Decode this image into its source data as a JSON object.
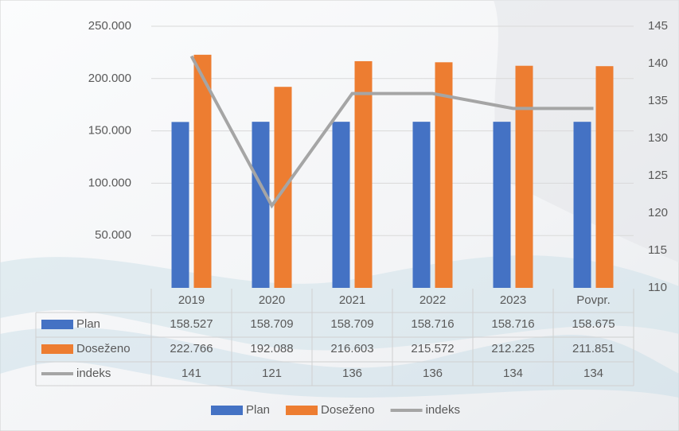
{
  "chart_data": {
    "type": "bar",
    "categories": [
      "2019",
      "2020",
      "2021",
      "2022",
      "2023",
      "Povpr."
    ],
    "series": [
      {
        "name": "Plan",
        "color": "#4472c4",
        "values": [
          158527,
          158709,
          158709,
          158716,
          158716,
          158675
        ],
        "value_labels": [
          "158.527",
          "158.709",
          "158.709",
          "158.716",
          "158.716",
          "158.675"
        ]
      },
      {
        "name": "Doseženo",
        "color": "#ed7d31",
        "values": [
          222766,
          192088,
          216603,
          215572,
          212225,
          211851
        ],
        "value_labels": [
          "222.766",
          "192.088",
          "216.603",
          "215.572",
          "212.225",
          "211.851"
        ]
      },
      {
        "name": "indeks",
        "type": "line",
        "axis": "y2",
        "color": "#a5a5a5",
        "values": [
          141,
          121,
          136,
          136,
          134,
          134
        ]
      }
    ],
    "ylim": [
      0,
      250000
    ],
    "yticks": [
      {
        "value": 50000,
        "label": "50.000"
      },
      {
        "value": 100000,
        "label": "100.000"
      },
      {
        "value": 150000,
        "label": "150.000"
      },
      {
        "value": 200000,
        "label": "200.000"
      },
      {
        "value": 250000,
        "label": "250.000"
      }
    ],
    "y2lim": [
      110,
      145
    ],
    "y2ticks": [
      110,
      115,
      120,
      125,
      130,
      135,
      140,
      145
    ],
    "grid": true,
    "legend": "bottom"
  }
}
